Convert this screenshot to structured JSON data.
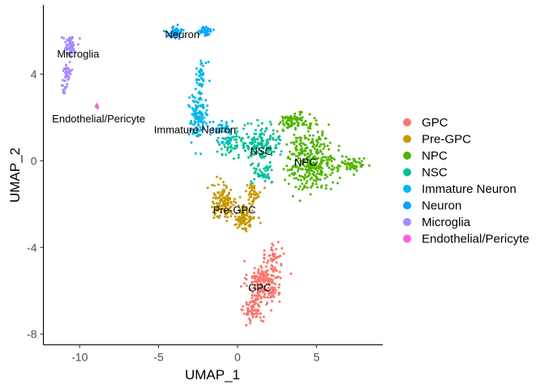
{
  "chart_data": {
    "type": "scatter",
    "title": "",
    "xlabel": "UMAP_1",
    "ylabel": "UMAP_2",
    "xlim": [
      -12.3,
      9.2
    ],
    "ylim": [
      -8.5,
      7.2
    ],
    "x_ticks": [
      -10,
      -5,
      0,
      5
    ],
    "x_tick_labels": [
      "-10",
      "-5",
      "0",
      "5"
    ],
    "y_ticks": [
      -8,
      -4,
      0,
      4
    ],
    "y_tick_labels": [
      "-8",
      "-4",
      "0",
      "4"
    ],
    "grid": false,
    "legend_position": "right",
    "series": [
      {
        "name": "GPC",
        "color": "#F8766D",
        "clusters": [
          {
            "center": [
              1.7,
              -5.6
            ],
            "spread": [
              0.95,
              0.9
            ],
            "n": 210
          },
          {
            "center": [
              1.0,
              -6.9
            ],
            "spread": [
              0.55,
              0.55
            ],
            "n": 70
          },
          {
            "center": [
              2.3,
              -4.4
            ],
            "spread": [
              0.45,
              0.6
            ],
            "n": 40
          }
        ]
      },
      {
        "name": "Pre-GPC",
        "color": "#C49A00",
        "clusters": [
          {
            "center": [
              -0.9,
              -1.9
            ],
            "spread": [
              0.7,
              0.75
            ],
            "n": 120
          },
          {
            "center": [
              0.4,
              -2.6
            ],
            "spread": [
              0.65,
              0.55
            ],
            "n": 110
          },
          {
            "center": [
              1.0,
              -1.5
            ],
            "spread": [
              0.45,
              0.45
            ],
            "n": 40
          }
        ]
      },
      {
        "name": "NPC",
        "color": "#53B400",
        "clusters": [
          {
            "center": [
              4.7,
              0.0
            ],
            "spread": [
              1.4,
              1.2
            ],
            "n": 330
          },
          {
            "center": [
              7.2,
              -0.2
            ],
            "spread": [
              0.8,
              0.3
            ],
            "n": 60
          },
          {
            "center": [
              3.6,
              1.8
            ],
            "spread": [
              0.9,
              0.35
            ],
            "n": 90
          }
        ]
      },
      {
        "name": "NSC",
        "color": "#00C094",
        "clusters": [
          {
            "center": [
              1.4,
              0.8
            ],
            "spread": [
              1.2,
              0.75
            ],
            "n": 160
          },
          {
            "center": [
              -0.6,
              0.8
            ],
            "spread": [
              0.7,
              0.6
            ],
            "n": 50
          },
          {
            "center": [
              1.6,
              -0.6
            ],
            "spread": [
              0.7,
              0.4
            ],
            "n": 40
          }
        ]
      },
      {
        "name": "Immature Neuron",
        "color": "#00B6EB",
        "clusters": [
          {
            "center": [
              -2.5,
              2.0
            ],
            "spread": [
              0.55,
              1.0
            ],
            "n": 120
          },
          {
            "center": [
              -2.3,
              4.0
            ],
            "spread": [
              0.35,
              0.7
            ],
            "n": 40
          },
          {
            "center": [
              -0.8,
              1.4
            ],
            "spread": [
              0.7,
              0.4
            ],
            "n": 40
          }
        ]
      },
      {
        "name": "Neuron",
        "color": "#06A4FF",
        "clusters": [
          {
            "center": [
              -4.0,
              5.9
            ],
            "spread": [
              0.45,
              0.25
            ],
            "n": 55
          },
          {
            "center": [
              -2.0,
              6.0
            ],
            "spread": [
              0.35,
              0.2
            ],
            "n": 35
          }
        ]
      },
      {
        "name": "Microglia",
        "color": "#A58AFF",
        "clusters": [
          {
            "center": [
              -10.6,
              5.3
            ],
            "spread": [
              0.35,
              0.45
            ],
            "n": 60
          },
          {
            "center": [
              -10.8,
              4.1
            ],
            "spread": [
              0.25,
              0.45
            ],
            "n": 35
          },
          {
            "center": [
              -11.0,
              3.3
            ],
            "spread": [
              0.2,
              0.3
            ],
            "n": 12
          }
        ]
      },
      {
        "name": "Endothelial/Pericyte",
        "color": "#FB61D7",
        "clusters": [
          {
            "center": [
              -8.9,
              2.5
            ],
            "spread": [
              0.08,
              0.1
            ],
            "n": 8
          }
        ]
      }
    ],
    "cluster_labels": [
      {
        "text": "Neuron",
        "x": -3.5,
        "y": 5.8
      },
      {
        "text": "Microglia",
        "x": -10.1,
        "y": 4.9
      },
      {
        "text": "Endothelial/Pericyte",
        "x": -8.8,
        "y": 1.9
      },
      {
        "text": "Immature Neuron",
        "x": -2.7,
        "y": 1.4
      },
      {
        "text": "NSC",
        "x": 1.5,
        "y": 0.4
      },
      {
        "text": "NPC",
        "x": 4.3,
        "y": -0.1
      },
      {
        "text": "Pre-GPC",
        "x": -0.2,
        "y": -2.3
      },
      {
        "text": "GPC",
        "x": 1.4,
        "y": -5.9
      }
    ]
  }
}
